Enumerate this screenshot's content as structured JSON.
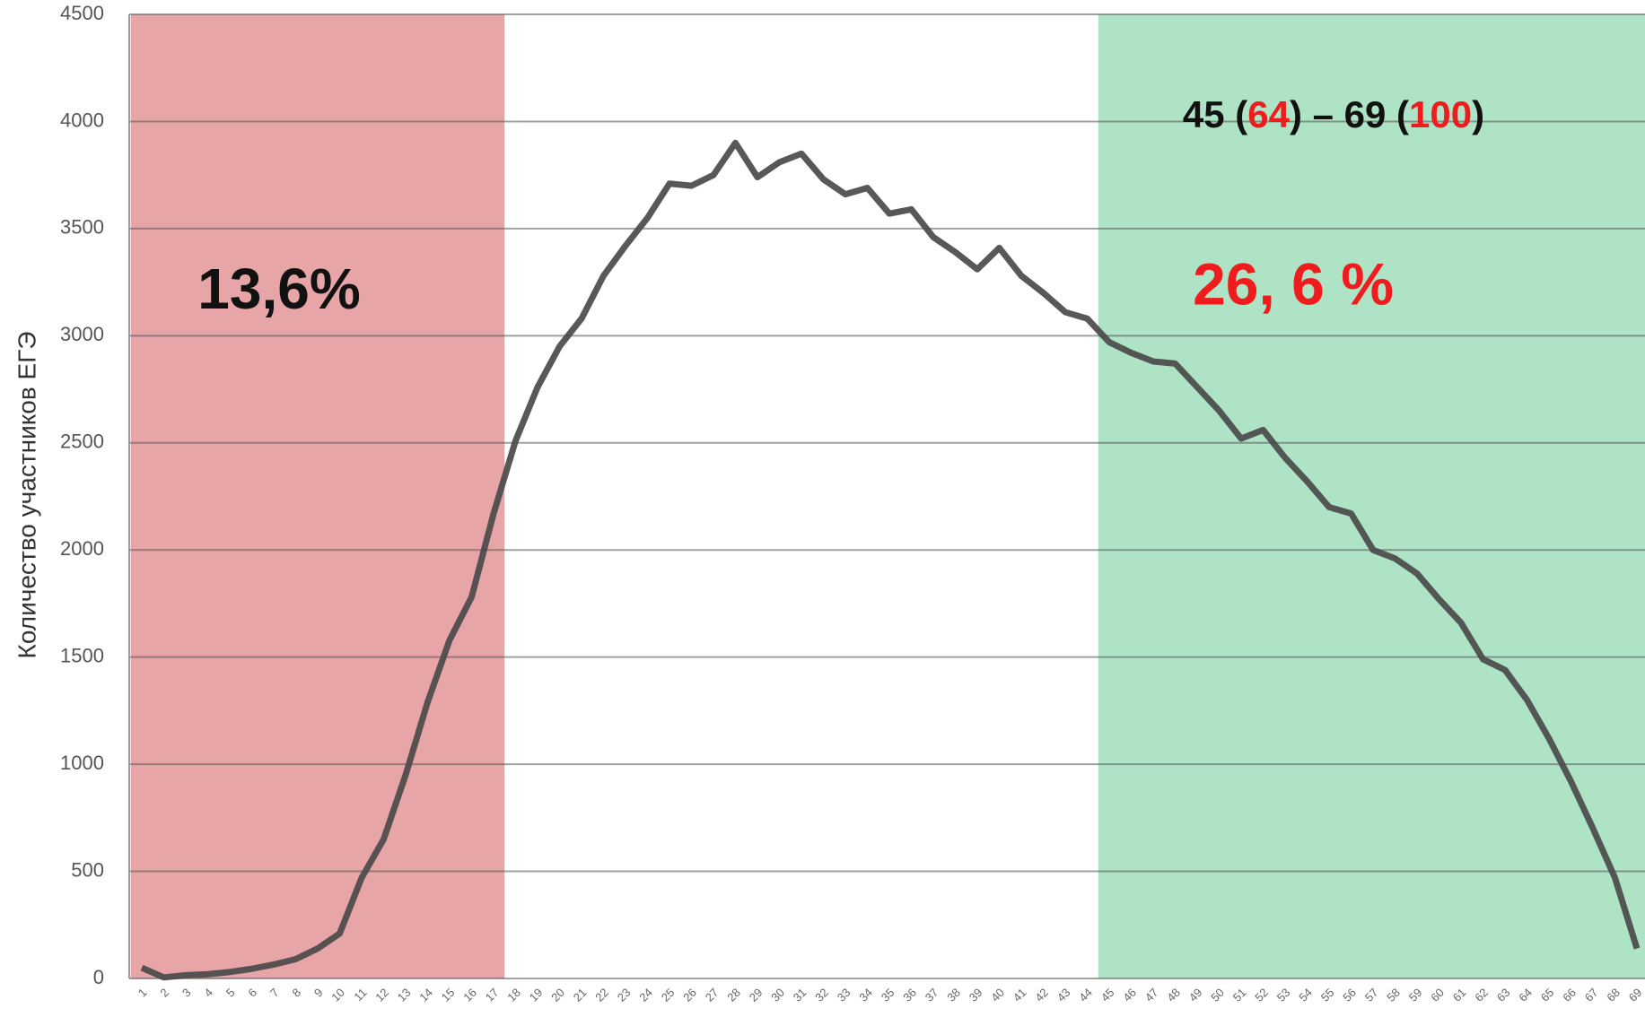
{
  "chart_data": {
    "type": "line",
    "y_label": "Количество участников ЕГЭ",
    "categories": [
      1,
      2,
      3,
      4,
      5,
      6,
      7,
      8,
      9,
      10,
      11,
      12,
      13,
      14,
      15,
      16,
      17,
      18,
      19,
      20,
      21,
      22,
      23,
      24,
      25,
      26,
      27,
      28,
      29,
      30,
      31,
      32,
      33,
      34,
      35,
      36,
      37,
      38,
      39,
      40,
      41,
      42,
      43,
      44,
      45,
      46,
      47,
      48,
      49,
      50,
      51,
      52,
      53,
      54,
      55,
      56,
      57,
      58,
      59,
      60,
      61,
      62,
      63,
      64,
      65,
      66,
      67,
      68,
      69
    ],
    "series": [
      {
        "color": "#4a4a4a",
        "values": [
          50,
          5,
          15,
          20,
          30,
          45,
          65,
          90,
          140,
          210,
          470,
          650,
          950,
          1290,
          1580,
          1780,
          2170,
          2510,
          2760,
          2950,
          3080,
          3280,
          3420,
          3550,
          3710,
          3700,
          3750,
          3900,
          3740,
          3810,
          3850,
          3730,
          3660,
          3690,
          3570,
          3590,
          3460,
          3390,
          3310,
          3410,
          3280,
          3200,
          3110,
          3080,
          2970,
          2920,
          2880,
          2870,
          2760,
          2650,
          2520,
          2560,
          2430,
          2320,
          2200,
          2170,
          2000,
          1960,
          1890,
          1770,
          1660,
          1490,
          1440,
          1300,
          1120,
          920,
          700,
          470,
          140
        ]
      }
    ],
    "ylim": [
      0,
      4500
    ],
    "yticks": [
      0,
      500,
      1000,
      1500,
      2000,
      2500,
      3000,
      3500,
      4000,
      4500
    ],
    "grid": true,
    "bands": [
      {
        "from": 1,
        "to": 17,
        "color": "#e8a5a7"
      },
      {
        "from": 45,
        "to": 69,
        "color": "#aee3c5"
      }
    ],
    "annotations": [
      {
        "text": "13,6%",
        "color": "#111111"
      },
      {
        "text": "26, 6 %",
        "color": "#ee1c1c"
      },
      {
        "parts": [
          {
            "text": "45 (",
            "color": "#111111"
          },
          {
            "text": "64",
            "color": "#ee1c1c"
          },
          {
            "text": ") – 69 (",
            "color": "#111111"
          },
          {
            "text": "100",
            "color": "#ee1c1c"
          },
          {
            "text": ")",
            "color": "#111111"
          }
        ]
      }
    ]
  }
}
